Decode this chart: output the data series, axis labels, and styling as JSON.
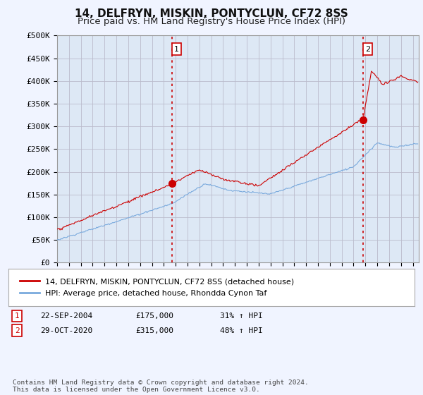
{
  "title": "14, DELFRYN, MISKIN, PONTYCLUN, CF72 8SS",
  "subtitle": "Price paid vs. HM Land Registry's House Price Index (HPI)",
  "ylabel_ticks": [
    "£0",
    "£50K",
    "£100K",
    "£150K",
    "£200K",
    "£250K",
    "£300K",
    "£350K",
    "£400K",
    "£450K",
    "£500K"
  ],
  "ytick_values": [
    0,
    50000,
    100000,
    150000,
    200000,
    250000,
    300000,
    350000,
    400000,
    450000,
    500000
  ],
  "ylim": [
    0,
    500000
  ],
  "xlim_start": 1995.0,
  "xlim_end": 2025.5,
  "sale1_year": 2004.72,
  "sale1_price": 175000,
  "sale2_year": 2020.83,
  "sale2_price": 315000,
  "sale1_label": "1",
  "sale2_label": "2",
  "vline_color": "#cc0000",
  "vline_style": ":",
  "red_line_color": "#cc0000",
  "blue_line_color": "#7aaadd",
  "background_color": "#f0f4ff",
  "plot_bg_color": "#dde8f5",
  "legend_red_label": "14, DELFRYN, MISKIN, PONTYCLUN, CF72 8SS (detached house)",
  "legend_blue_label": "HPI: Average price, detached house, Rhondda Cynon Taf",
  "table_row1": [
    "1",
    "22-SEP-2004",
    "£175,000",
    "31% ↑ HPI"
  ],
  "table_row2": [
    "2",
    "29-OCT-2020",
    "£315,000",
    "48% ↑ HPI"
  ],
  "footnote": "Contains HM Land Registry data © Crown copyright and database right 2024.\nThis data is licensed under the Open Government Licence v3.0.",
  "grid_color": "#bbbbcc",
  "title_fontsize": 11,
  "subtitle_fontsize": 9.5,
  "tick_fontsize": 8
}
